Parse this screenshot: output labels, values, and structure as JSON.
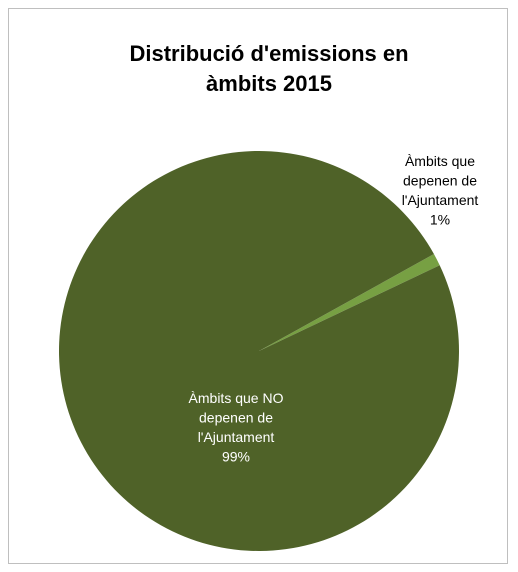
{
  "chart_data": {
    "type": "pie",
    "title": "Distribució d'emissions  en\nàmbits 2015",
    "slices": [
      {
        "label_lines": [
          "Àmbits que",
          "depenen de",
          "l'Ajuntament",
          "1%"
        ],
        "value": 1,
        "color": "#77a043",
        "label_color": "#000000"
      },
      {
        "label_lines": [
          "Àmbits que NO",
          "depenen de",
          "l'Ajuntament",
          "99%"
        ],
        "value": 99,
        "color": "#4f6228",
        "label_color": "#ffffff"
      }
    ],
    "legend": "none"
  }
}
